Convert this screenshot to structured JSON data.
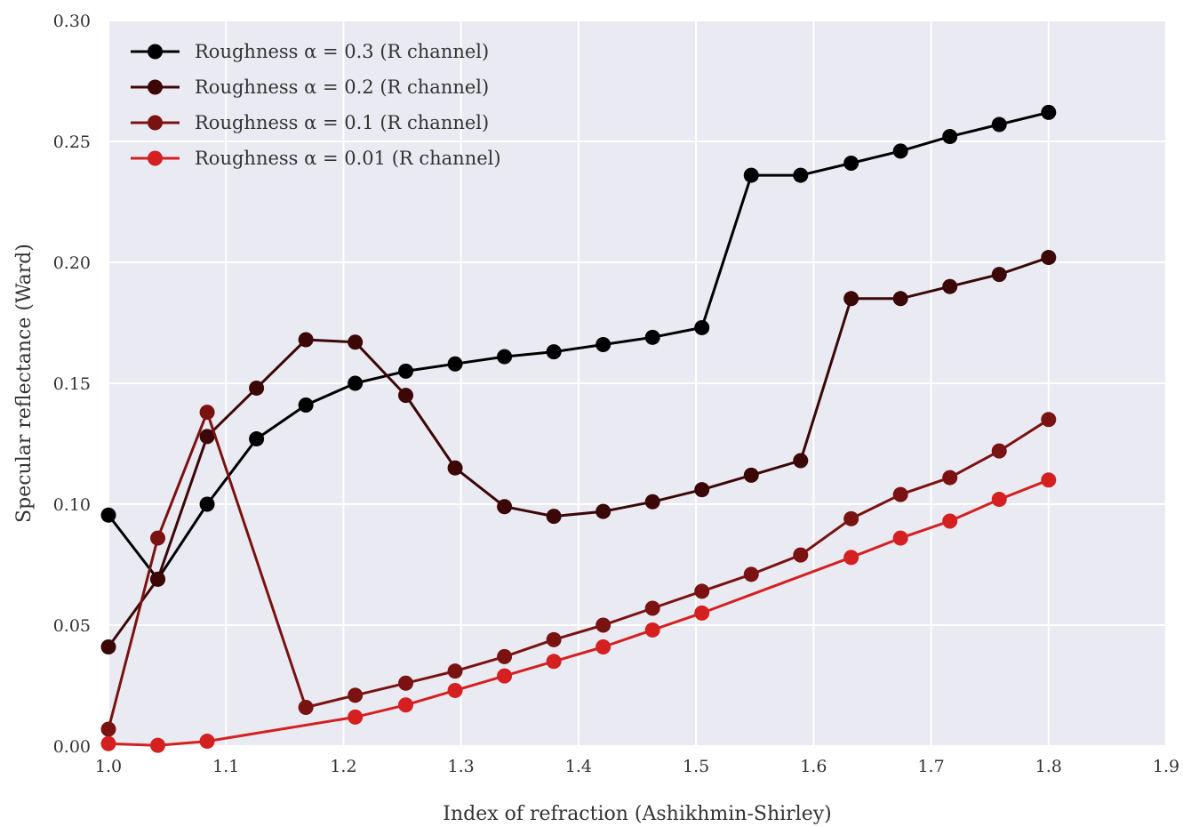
{
  "chart_data": {
    "type": "line",
    "title": "",
    "xlabel": "Index of refraction (Ashikhmin-Shirley)",
    "ylabel": "Specular reflectance (Ward)",
    "xlim": [
      1.0,
      1.9
    ],
    "ylim": [
      0.0,
      0.3
    ],
    "x_ticks": [
      "1.0",
      "1.1",
      "1.2",
      "1.3",
      "1.4",
      "1.5",
      "1.6",
      "1.7",
      "1.8",
      "1.9"
    ],
    "y_ticks": [
      "0.00",
      "0.05",
      "0.10",
      "0.15",
      "0.20",
      "0.25",
      "0.30"
    ],
    "grid": true,
    "legend_position": "top-left",
    "plot_background": "#eaeaf2",
    "series": [
      {
        "name": "Roughness α = 0.3 (R channel)",
        "color": "#000000",
        "x": [
          1.0,
          1.042,
          1.084,
          1.126,
          1.168,
          1.21,
          1.253,
          1.295,
          1.337,
          1.379,
          1.421,
          1.463,
          1.505,
          1.547,
          1.589,
          1.632,
          1.674,
          1.716,
          1.758,
          1.8
        ],
        "y": [
          0.0955,
          0.069,
          0.1,
          0.127,
          0.141,
          0.15,
          0.155,
          0.158,
          0.161,
          0.163,
          0.166,
          0.169,
          0.173,
          0.236,
          0.236,
          0.241,
          0.246,
          0.252,
          0.257,
          0.262
        ]
      },
      {
        "name": "Roughness α = 0.2 (R channel)",
        "color": "#3b0707",
        "x": [
          1.0,
          1.042,
          1.084,
          1.126,
          1.168,
          1.21,
          1.253,
          1.295,
          1.337,
          1.379,
          1.421,
          1.463,
          1.505,
          1.547,
          1.589,
          1.632,
          1.674,
          1.716,
          1.758,
          1.8
        ],
        "y": [
          0.041,
          0.069,
          0.128,
          0.148,
          0.168,
          0.167,
          0.145,
          0.115,
          0.099,
          0.095,
          0.097,
          0.101,
          0.106,
          0.112,
          0.118,
          0.185,
          0.185,
          0.19,
          0.195,
          0.202
        ]
      },
      {
        "name": "Roughness α = 0.1 (R channel)",
        "color": "#7a1212",
        "x": [
          1.0,
          1.042,
          1.084,
          1.168,
          1.21,
          1.253,
          1.295,
          1.337,
          1.379,
          1.421,
          1.463,
          1.505,
          1.547,
          1.589,
          1.632,
          1.674,
          1.716,
          1.758,
          1.8
        ],
        "y": [
          0.007,
          0.086,
          0.138,
          0.016,
          0.021,
          0.026,
          0.031,
          0.037,
          0.044,
          0.05,
          0.057,
          0.064,
          0.071,
          0.079,
          0.094,
          0.104,
          0.111,
          0.122,
          0.135
        ]
      },
      {
        "name": "Roughness α = 0.01 (R channel)",
        "color": "#d42020",
        "x": [
          1.0,
          1.042,
          1.084,
          1.21,
          1.253,
          1.295,
          1.337,
          1.379,
          1.421,
          1.463,
          1.505,
          1.632,
          1.674,
          1.716,
          1.758,
          1.8
        ],
        "y": [
          0.001,
          0.0003,
          0.002,
          0.012,
          0.017,
          0.023,
          0.029,
          0.035,
          0.041,
          0.048,
          0.055,
          0.078,
          0.086,
          0.093,
          0.102,
          0.11
        ]
      }
    ]
  }
}
